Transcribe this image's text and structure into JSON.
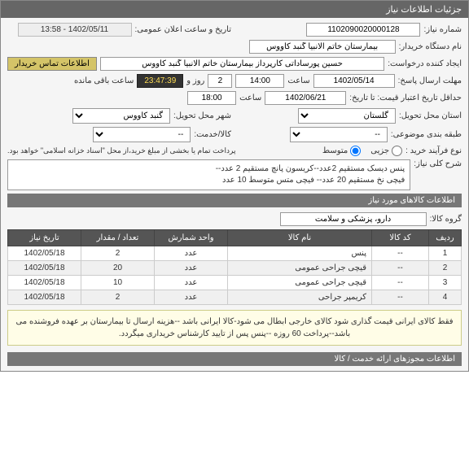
{
  "panel": {
    "title": "جزئیات اطلاعات نیاز"
  },
  "fields": {
    "need_number_label": "شماره نیاز:",
    "need_number": "1102090020000128",
    "announce_label": "تاریخ و ساعت اعلان عمومی:",
    "announce_value": "1402/05/11 - 13:58",
    "buyer_label": "نام دستگاه خریدار:",
    "buyer_value": "بیمارستان خاتم الانبیا گنبد کاووس",
    "requester_label": "ایجاد کننده درخواست:",
    "requester_value": "حسین پورساداتی کارپرداز بیمارستان خاتم الانبیا گنبد کاووس",
    "contact_btn": "اطلاعات تماس خریدار",
    "send_deadline_label": "مهلت ارسال پاسخ:",
    "send_deadline_date": "1402/05/14",
    "time_label": "ساعت",
    "send_deadline_time": "14:00",
    "days_label": "روز و",
    "days_value": "2",
    "countdown": "23:47:39",
    "remaining_label": "ساعت باقی مانده",
    "validity_label": "حداقل تاریخ اعتبار قیمت: تا تاریخ:",
    "validity_date": "1402/06/21",
    "validity_time": "18:00",
    "province_label": "استان محل تحویل:",
    "province_value": "گلستان",
    "city_label": "شهر محل تحویل:",
    "city_value": "گنبد کاووس",
    "category_label": "طبقه بندی موضوعی:",
    "category_value": "--",
    "service_label": "کالا/خدمت:",
    "service_value": "--",
    "buy_type_label": "نوع فرآیند خرید :",
    "radio_partial": "جزیی",
    "radio_medium": "متوسط",
    "buy_note": "پرداخت تمام یا بخشی از مبلغ خرید،از محل \"اسناد خزانه اسلامی\" خواهد بود.",
    "desc_label": "شرح کلی نیاز:",
    "desc_value": "پنس دیسک مستقیم 2عدد--کریسون پانچ مستقیم 2 عدد--\nفیچی نخ مستقیم 20 عدد-- فیچی متس متوسط 10 عدد"
  },
  "items_panel": {
    "title": "اطلاعات کالاهای مورد نیاز",
    "group_label": "گروه کالا:",
    "group_value": "دارو، پزشکی و سلامت"
  },
  "table": {
    "columns": [
      "ردیف",
      "کد کالا",
      "نام کالا",
      "واحد شمارش",
      "تعداد / مقدار",
      "تاریخ نیاز"
    ],
    "rows": [
      [
        "1",
        "--",
        "پنس",
        "عدد",
        "2",
        "1402/05/18"
      ],
      [
        "2",
        "--",
        "قیچی جراحی عمومی",
        "عدد",
        "20",
        "1402/05/18"
      ],
      [
        "3",
        "--",
        "قیچی جراحی عمومی",
        "عدد",
        "10",
        "1402/05/18"
      ],
      [
        "4",
        "--",
        "کریمپر جراحی",
        "عدد",
        "2",
        "1402/05/18"
      ]
    ],
    "col_widths": [
      "40px",
      "70px",
      "auto",
      "90px",
      "90px",
      "90px"
    ]
  },
  "note": "فقط کالای ایرانی قیمت گذاری شود کالای خارجی ابطال می شود-کالا ایرانی باشد --هزینه ارسال تا بیمارستان بر عهده فروشنده می باشد--پرداخت 60 روزه --پنس پس از تایید کارشناس خریداری میگردد.",
  "footer_panel": {
    "title": "اطلاعات مجوزهای ارائه خدمت / کالا"
  },
  "colors": {
    "header_bg": "#666666",
    "header_fg": "#ffffff",
    "panel_bg": "#f5f5f5",
    "contact_bg": "#d4c468",
    "countdown_bg": "#333333",
    "countdown_fg": "#ffdd55",
    "note_bg": "#fffde7",
    "th_bg": "#555555",
    "row_alt": "#f0f0f0"
  }
}
